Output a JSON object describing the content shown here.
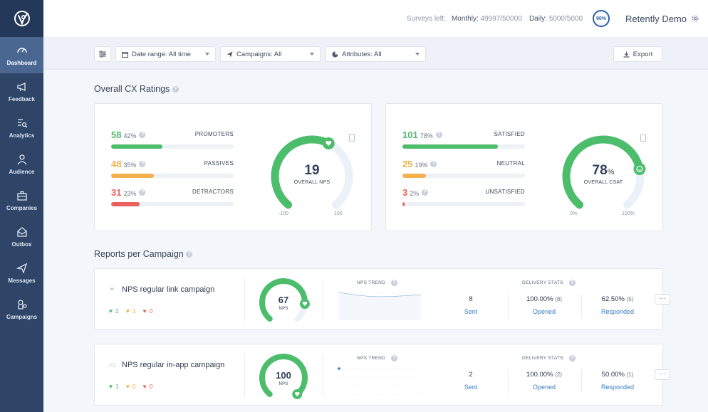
{
  "sidebar": {
    "items": [
      {
        "label": "Dashboard",
        "icon": "gauge-icon"
      },
      {
        "label": "Feedback",
        "icon": "megaphone-icon"
      },
      {
        "label": "Analytics",
        "icon": "analytics-icon"
      },
      {
        "label": "Audience",
        "icon": "person-icon"
      },
      {
        "label": "Companies",
        "icon": "briefcase-icon"
      },
      {
        "label": "Outbox",
        "icon": "envelope-icon"
      },
      {
        "label": "Messages",
        "icon": "paper-plane-icon"
      },
      {
        "label": "Campaigns",
        "icon": "campaign-icon"
      }
    ]
  },
  "topbar": {
    "surveys_left_label": "Surveys left:",
    "monthly_label": "Monthly:",
    "monthly_value": "49997/50000",
    "daily_label": "Daily:",
    "daily_value": "5000/5000",
    "badge": "90%",
    "account_name": "Retently Demo"
  },
  "filters": {
    "date_range": "Date range: All time",
    "campaigns": "Campaigns: All",
    "attributes": "Attributes: All",
    "export": "Export"
  },
  "overall": {
    "title": "Overall CX Ratings",
    "nps": {
      "rows": [
        {
          "count": "58",
          "pct": "42%",
          "name": "PROMOTERS",
          "fraction": 0.42,
          "color": "#4cbd6b"
        },
        {
          "count": "48",
          "pct": "35%",
          "name": "PASSIVES",
          "fraction": 0.35,
          "color": "#f2b04e"
        },
        {
          "count": "31",
          "pct": "23%",
          "name": "DETRACTORS",
          "fraction": 0.23,
          "color": "#e8615e"
        }
      ],
      "score": "19",
      "label": "OVERALL NPS",
      "min": "-100",
      "max": "100",
      "gauge_fraction": 0.595
    },
    "csat": {
      "rows": [
        {
          "count": "101",
          "pct": "78%",
          "name": "SATISFIED",
          "fraction": 0.78,
          "color": "#4cbd6b"
        },
        {
          "count": "25",
          "pct": "19%",
          "name": "NEUTRAL",
          "fraction": 0.19,
          "color": "#f2b04e"
        },
        {
          "count": "3",
          "pct": "2%",
          "name": "UNSATISFIED",
          "fraction": 0.02,
          "color": "#e8615e"
        }
      ],
      "score": "78",
      "score_suffix": "%",
      "label": "OVERALL CSAT",
      "min": "0%",
      "max": "100%",
      "gauge_fraction": 0.78
    }
  },
  "campaigns": {
    "title": "Reports per Campaign",
    "items": [
      {
        "name": "NPS regular link campaign",
        "icon": "link-icon",
        "promoters": "2",
        "passives": "1",
        "detractors": "0",
        "nps": "67",
        "nps_label": "NPS",
        "gauge_fraction": 0.835,
        "trend_title": "NPS TREND",
        "delivery_title": "DELIVERY STATS",
        "sent": "8",
        "sent_label": "Sent",
        "opened": "100.00%",
        "opened_count": "(8)",
        "opened_label": "Opened",
        "responded": "62.50%",
        "responded_count": "(5)",
        "responded_label": "Responded",
        "more": "···"
      },
      {
        "name": "NPS regular in-app campaign",
        "icon": "monitor-icon",
        "promoters": "1",
        "passives": "0",
        "detractors": "0",
        "nps": "100",
        "nps_label": "NPS",
        "gauge_fraction": 1.0,
        "trend_title": "NPS TREND",
        "delivery_title": "DELIVERY STATS",
        "sent": "2",
        "sent_label": "Sent",
        "opened": "100.00%",
        "opened_count": "(2)",
        "opened_label": "Opened",
        "responded": "50.00%",
        "responded_count": "(1)",
        "responded_label": "Responded",
        "more": "···"
      }
    ]
  },
  "colors": {
    "sidebar": "#2e4568",
    "green": "#4cbd6b",
    "orange": "#f2b04e",
    "red": "#e8615e",
    "link": "#3a7cc1"
  }
}
